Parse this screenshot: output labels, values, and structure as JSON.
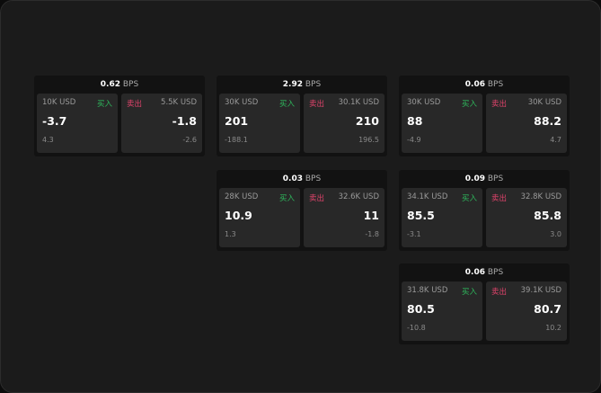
{
  "labels": {
    "buy": "买入",
    "sell": "卖出",
    "unit": "BPS"
  },
  "colors": {
    "buy": "#2eb85c",
    "sell": "#e0436b"
  },
  "cards": [
    {
      "spread": "0.62",
      "bid": {
        "size": "10K USD",
        "price": "-3.7",
        "change": "4.3"
      },
      "ask": {
        "size": "5.5K USD",
        "price": "-1.8",
        "change": "-2.6"
      }
    },
    {
      "spread": "2.92",
      "bid": {
        "size": "30K USD",
        "price": "201",
        "change": "-188.1"
      },
      "ask": {
        "size": "30.1K USD",
        "price": "210",
        "change": "196.5"
      }
    },
    {
      "spread": "0.06",
      "bid": {
        "size": "30K USD",
        "price": "88",
        "change": "-4.9"
      },
      "ask": {
        "size": "30K USD",
        "price": "88.2",
        "change": "4.7"
      }
    },
    {
      "spread": "0.03",
      "bid": {
        "size": "28K USD",
        "price": "10.9",
        "change": "1.3"
      },
      "ask": {
        "size": "32.6K USD",
        "price": "11",
        "change": "-1.8"
      }
    },
    {
      "spread": "0.09",
      "bid": {
        "size": "34.1K USD",
        "price": "85.5",
        "change": "-3.1"
      },
      "ask": {
        "size": "32.8K USD",
        "price": "85.8",
        "change": "3.0"
      }
    },
    {
      "spread": "0.06",
      "bid": {
        "size": "31.8K USD",
        "price": "80.5",
        "change": "-10.8"
      },
      "ask": {
        "size": "39.1K USD",
        "price": "80.7",
        "change": "10.2"
      }
    }
  ]
}
